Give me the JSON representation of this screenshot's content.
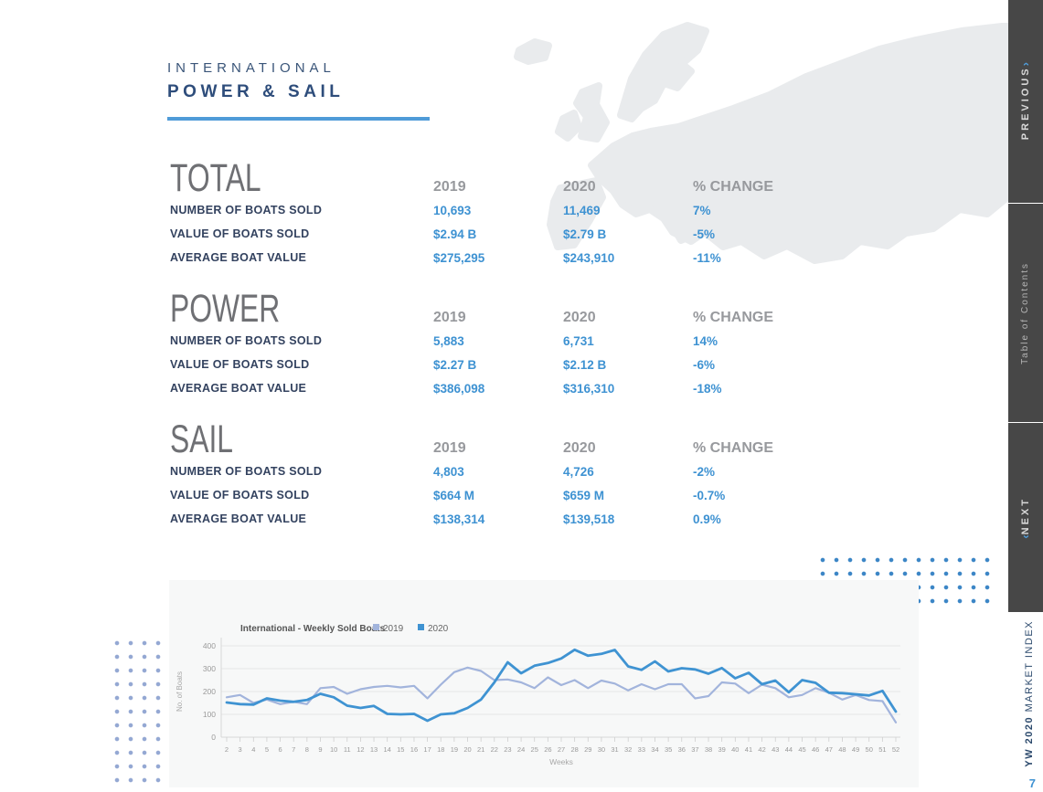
{
  "header": {
    "kicker": "INTERNATIONAL",
    "title": "POWER & SAIL"
  },
  "colors": {
    "accent_blue": "#3e92d2",
    "navy": "#2e4d7b",
    "rule_blue": "#4f9bd8",
    "sidebar_bg": "#474747",
    "panel_bg": "#f7f8f8",
    "map_gray": "#e9ebed",
    "dots_right": "#3c86c6",
    "dots_left": "#94a8d3"
  },
  "sections": [
    {
      "title": "TOTAL",
      "columns": [
        "2019",
        "2020",
        "% CHANGE"
      ],
      "rows": [
        {
          "label": "NUMBER OF BOATS SOLD",
          "y2019": "10,693",
          "y2020": "11,469",
          "change": "7%"
        },
        {
          "label": "VALUE OF BOATS SOLD",
          "y2019": "$2.94 B",
          "y2020": "$2.79 B",
          "change": "-5%"
        },
        {
          "label": "AVERAGE BOAT VALUE",
          "y2019": "$275,295",
          "y2020": "$243,910",
          "change": "-11%"
        }
      ]
    },
    {
      "title": "POWER",
      "columns": [
        "2019",
        "2020",
        "% CHANGE"
      ],
      "rows": [
        {
          "label": "NUMBER OF BOATS SOLD",
          "y2019": "5,883",
          "y2020": "6,731",
          "change": "14%"
        },
        {
          "label": "VALUE OF BOATS SOLD",
          "y2019": "$2.27 B",
          "y2020": "$2.12 B",
          "change": "-6%"
        },
        {
          "label": "AVERAGE BOAT VALUE",
          "y2019": "$386,098",
          "y2020": "$316,310",
          "change": "-18%"
        }
      ]
    },
    {
      "title": "SAIL",
      "columns": [
        "2019",
        "2020",
        "% CHANGE"
      ],
      "rows": [
        {
          "label": "NUMBER OF BOATS SOLD",
          "y2019": "4,803",
          "y2020": "4,726",
          "change": "-2%"
        },
        {
          "label": "VALUE OF BOATS SOLD",
          "y2019": "$664 M",
          "y2020": "$659 M",
          "change": "-0.7%"
        },
        {
          "label": "AVERAGE BOAT VALUE",
          "y2019": "$138,314",
          "y2020": "$139,518",
          "change": "0.9%"
        }
      ]
    }
  ],
  "sidebar": {
    "previous_label": "PREVIOUS",
    "previous_arrow": "›",
    "toc_label": "Table of Contents",
    "next_label": "NEXT",
    "next_arrow": "‹",
    "footer_bold": "YW 2020",
    "footer_rest": " MARKET INDEX",
    "page_number": "7"
  },
  "chart_data": {
    "type": "line",
    "title": "International - Weekly Sold Boats",
    "xlabel": "Weeks",
    "ylabel": "No. of Boats",
    "x": [
      2,
      3,
      4,
      5,
      6,
      7,
      8,
      9,
      10,
      11,
      12,
      13,
      14,
      15,
      16,
      17,
      18,
      19,
      20,
      21,
      22,
      23,
      24,
      25,
      26,
      27,
      28,
      29,
      30,
      31,
      32,
      33,
      34,
      35,
      36,
      37,
      38,
      39,
      40,
      41,
      42,
      43,
      44,
      45,
      46,
      47,
      48,
      49,
      50,
      51,
      52
    ],
    "ylim": [
      0,
      400
    ],
    "yticks": [
      0,
      100,
      200,
      300,
      400
    ],
    "grid": true,
    "legend_position": "top",
    "series": [
      {
        "name": "2019",
        "color": "#a2b4dc",
        "values": [
          175,
          185,
          150,
          165,
          145,
          155,
          145,
          215,
          220,
          190,
          210,
          220,
          225,
          218,
          225,
          170,
          230,
          285,
          305,
          290,
          250,
          253,
          240,
          215,
          262,
          228,
          250,
          215,
          248,
          235,
          205,
          232,
          210,
          232,
          232,
          170,
          180,
          240,
          235,
          193,
          230,
          215,
          175,
          185,
          215,
          195,
          165,
          185,
          163,
          158,
          65
        ]
      },
      {
        "name": "2020",
        "color": "#3f93d2",
        "values": [
          152,
          145,
          143,
          170,
          160,
          155,
          163,
          190,
          175,
          138,
          128,
          137,
          102,
          100,
          102,
          72,
          100,
          105,
          128,
          165,
          240,
          328,
          280,
          313,
          325,
          345,
          383,
          357,
          365,
          382,
          310,
          295,
          332,
          288,
          302,
          297,
          278,
          303,
          258,
          282,
          232,
          248,
          197,
          250,
          238,
          195,
          193,
          188,
          183,
          203,
          112
        ]
      }
    ]
  }
}
